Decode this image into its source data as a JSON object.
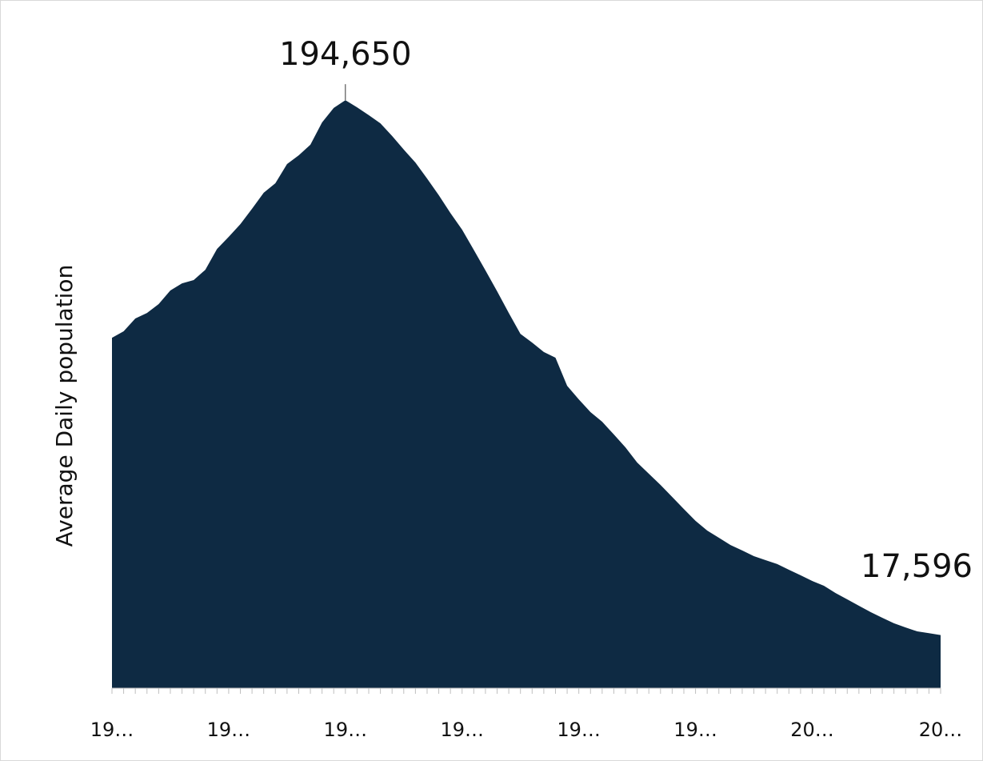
{
  "chart_data": {
    "type": "area",
    "y_label": "Average Daily population",
    "categories": [
      "19…",
      null,
      null,
      null,
      null,
      null,
      null,
      null,
      null,
      null,
      "19…",
      null,
      null,
      null,
      null,
      null,
      null,
      null,
      null,
      null,
      "19…",
      null,
      null,
      null,
      null,
      null,
      null,
      null,
      null,
      null,
      "19…",
      null,
      null,
      null,
      null,
      null,
      null,
      null,
      null,
      null,
      "19…",
      null,
      null,
      null,
      null,
      null,
      null,
      null,
      null,
      null,
      "19…",
      null,
      null,
      null,
      null,
      null,
      null,
      null,
      null,
      null,
      "20…",
      null,
      null,
      null,
      null,
      null,
      null,
      null,
      null,
      null,
      null,
      "20…"
    ],
    "values": [
      116000,
      118150,
      122400,
      124200,
      127150,
      131650,
      134000,
      135100,
      138500,
      145400,
      149400,
      153600,
      158700,
      164000,
      167150,
      173500,
      176400,
      179900,
      187300,
      192100,
      194650,
      192300,
      189700,
      187000,
      182800,
      178300,
      174000,
      168700,
      163200,
      157300,
      151800,
      145100,
      138300,
      131400,
      124200,
      117300,
      114400,
      111300,
      109400,
      100100,
      95600,
      91400,
      88200,
      84000,
      79700,
      74700,
      71000,
      67300,
      63300,
      59300,
      55400,
      52200,
      49800,
      47400,
      45600,
      43700,
      42400,
      41100,
      39200,
      37400,
      35500,
      33900,
      31500,
      29400,
      27300,
      25200,
      23300,
      21500,
      20100,
      18800,
      18200,
      17596
    ],
    "value_labels": [
      null,
      null,
      null,
      null,
      null,
      null,
      null,
      null,
      null,
      null,
      null,
      null,
      null,
      null,
      null,
      null,
      null,
      null,
      null,
      null,
      "194,650",
      null,
      null,
      null,
      null,
      null,
      null,
      null,
      null,
      null,
      null,
      null,
      null,
      null,
      null,
      null,
      null,
      null,
      null,
      null,
      null,
      null,
      null,
      null,
      null,
      null,
      null,
      null,
      null,
      null,
      null,
      null,
      null,
      null,
      null,
      null,
      null,
      null,
      null,
      null,
      null,
      null,
      null,
      null,
      null,
      null,
      null,
      null,
      null,
      null,
      null,
      "17,596"
    ],
    "color": "#0e2a43",
    "ylim": [
      0,
      200000
    ]
  }
}
